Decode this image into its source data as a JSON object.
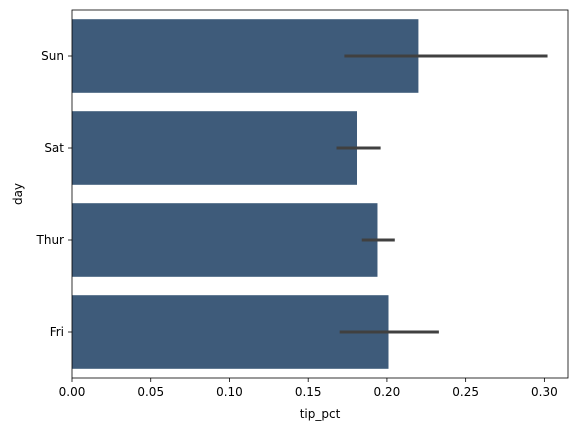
{
  "chart_data": {
    "type": "bar",
    "orientation": "horizontal",
    "title": "",
    "xlabel": "tip_pct",
    "ylabel": "day",
    "categories": [
      "Sun",
      "Sat",
      "Thur",
      "Fri"
    ],
    "values": [
      0.22,
      0.181,
      0.194,
      0.201
    ],
    "error_low": [
      0.173,
      0.168,
      0.184,
      0.17
    ],
    "error_high": [
      0.302,
      0.196,
      0.205,
      0.233
    ],
    "xlim": [
      0.0,
      0.315
    ],
    "xticks": [
      0.0,
      0.05,
      0.1,
      0.15,
      0.2,
      0.25,
      0.3
    ],
    "xtick_labels": [
      "0.00",
      "0.05",
      "0.10",
      "0.15",
      "0.20",
      "0.25",
      "0.30"
    ],
    "grid": false,
    "legend": "none",
    "bar_color": "#3e5b7a",
    "errorbar_color": "#404040"
  }
}
